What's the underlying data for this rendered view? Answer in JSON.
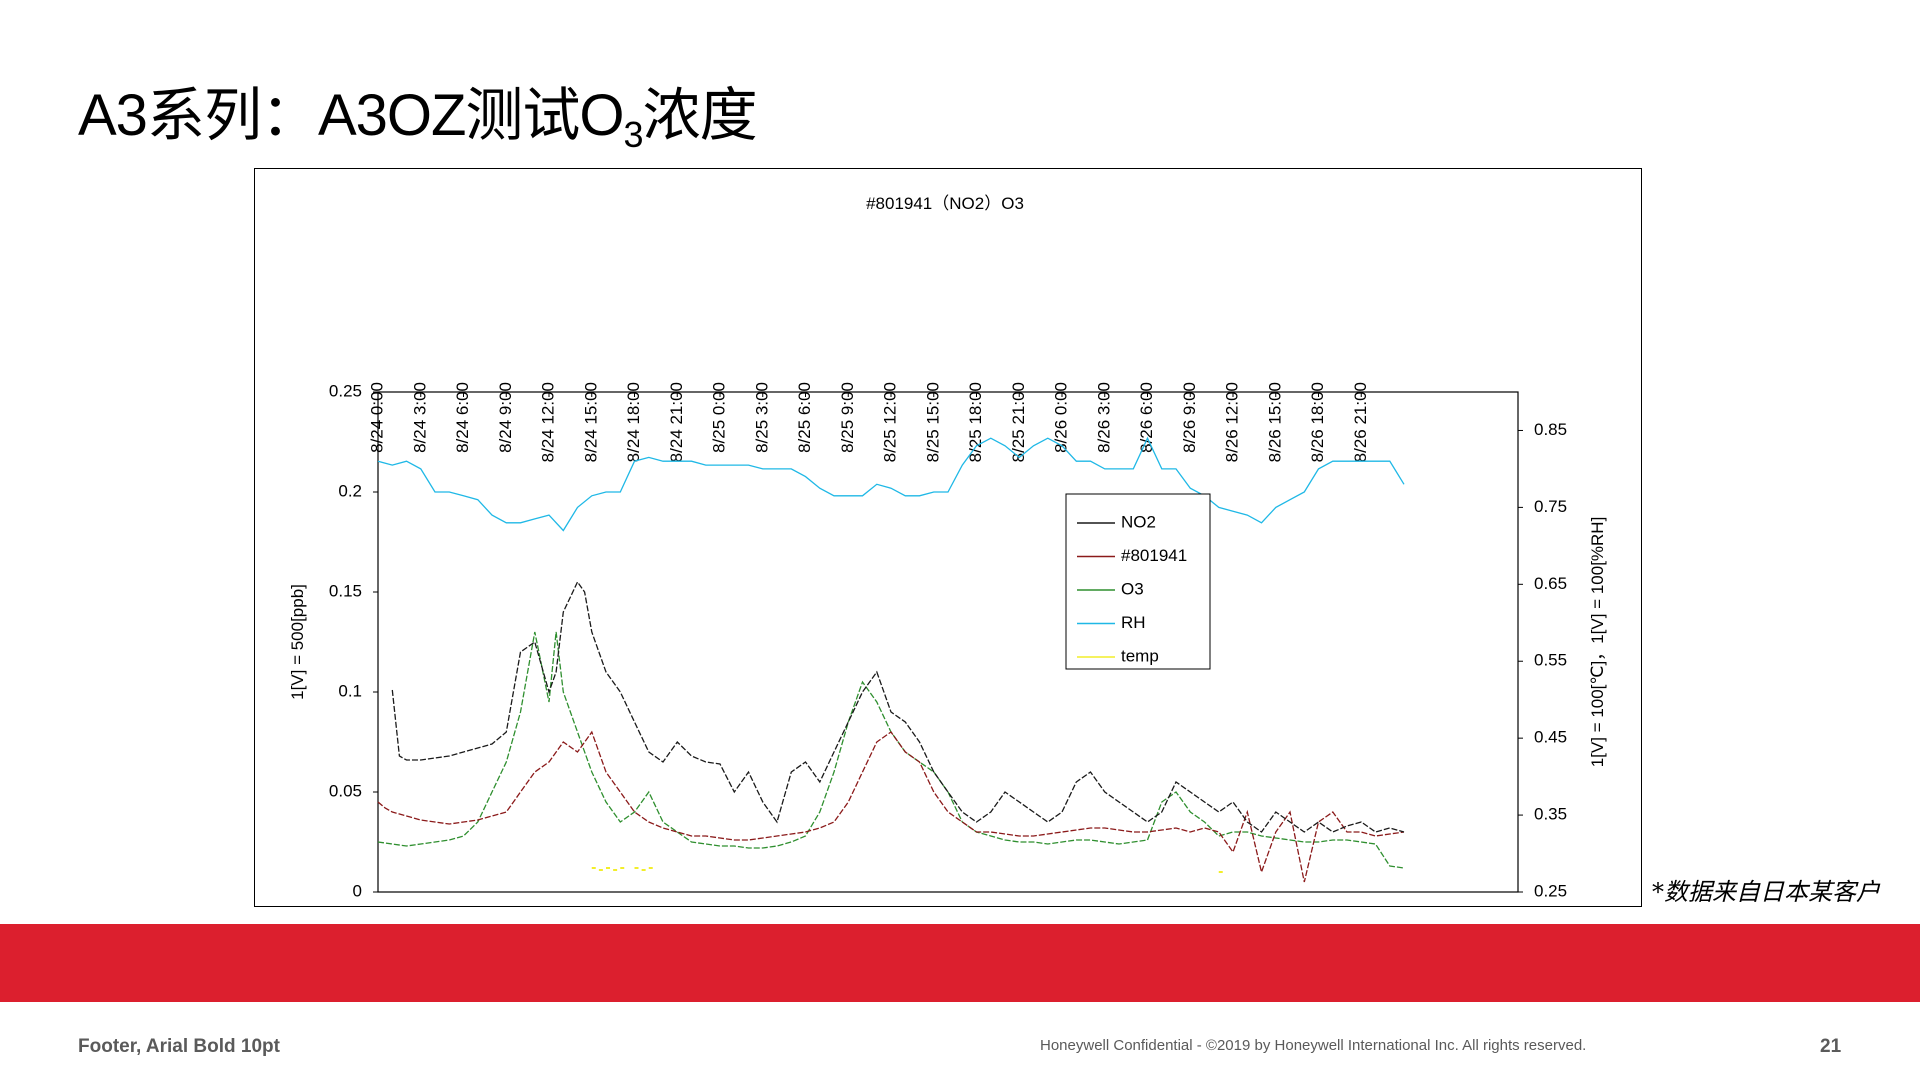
{
  "slide": {
    "title_main": "A3系列：A3OZ测试O",
    "title_sub": "3",
    "title_end": "浓度",
    "note": "*数据来自日本某客户",
    "footer_left": "Footer, Arial Bold 10pt",
    "footer_center": "Honeywell Confidential - ©2019 by Honeywell International Inc. All rights reserved.",
    "page_number": "21"
  },
  "colors": {
    "NO2": "#1a1a1a",
    "#801941": "#8b1a1a",
    "O3": "#2f8f2f",
    "RH": "#1fb8e6",
    "temp": "#f2ee2a",
    "band": "#dc1f2e"
  },
  "chart_data": {
    "type": "line",
    "title": "#801941（NO2）O3",
    "x_ticks": [
      "8/24 0:00",
      "8/24 3:00",
      "8/24 6:00",
      "8/24 9:00",
      "8/24 12:00",
      "8/24 15:00",
      "8/24 18:00",
      "8/24 21:00",
      "8/25 0:00",
      "8/25 3:00",
      "8/25 6:00",
      "8/25 9:00",
      "8/25 12:00",
      "8/25 15:00",
      "8/25 18:00",
      "8/25 21:00",
      "8/26 0:00",
      "8/26 3:00",
      "8/26 6:00",
      "8/26 9:00",
      "8/26 12:00",
      "8/26 15:00",
      "8/26 18:00",
      "8/26 21:00"
    ],
    "xlim_hours": [
      0,
      72
    ],
    "y_left": {
      "label": "1[V] = 500[ppb]",
      "ylim": [
        0,
        0.25
      ],
      "ticks": [
        "0",
        "0.05",
        "0.1",
        "0.15",
        "0.2",
        "0.25"
      ]
    },
    "y_right": {
      "label": "1[V] = 100[℃]，1[V] = 100[%RH]",
      "ylim": [
        0.25,
        0.9
      ],
      "ticks": [
        "0.25",
        "0.35",
        "0.45",
        "0.55",
        "0.65",
        "0.75",
        "0.85"
      ]
    },
    "legend": {
      "placement": "center-right",
      "entries": [
        "NO2",
        "#801941",
        "O3",
        "RH",
        "temp"
      ]
    },
    "series": [
      {
        "name": "NO2",
        "axis": "left",
        "x": [
          1,
          1.5,
          2,
          3,
          4,
          5,
          6,
          7,
          8,
          9,
          10,
          11,
          12,
          12.5,
          13,
          14,
          14.5,
          15,
          16,
          17,
          18,
          19,
          20,
          21,
          22,
          23,
          24,
          25,
          26,
          27,
          28,
          29,
          30,
          31,
          32,
          33,
          34,
          35,
          36,
          37,
          38,
          39,
          40,
          41,
          42,
          43,
          44,
          45,
          46,
          47,
          48,
          49,
          50,
          51,
          52,
          53,
          54,
          55,
          56,
          57,
          58,
          59,
          60,
          61,
          62,
          63,
          64,
          65,
          66,
          67,
          68,
          69,
          70,
          71,
          72
        ],
        "y": [
          0.101,
          0.068,
          0.066,
          0.066,
          0.067,
          0.068,
          0.07,
          0.072,
          0.074,
          0.08,
          0.12,
          0.125,
          0.1,
          0.11,
          0.14,
          0.155,
          0.15,
          0.13,
          0.11,
          0.1,
          0.085,
          0.07,
          0.065,
          0.075,
          0.068,
          0.065,
          0.064,
          0.05,
          0.06,
          0.045,
          0.035,
          0.06,
          0.065,
          0.055,
          0.07,
          0.085,
          0.1,
          0.11,
          0.09,
          0.085,
          0.075,
          0.06,
          0.05,
          0.04,
          0.035,
          0.04,
          0.05,
          0.045,
          0.04,
          0.035,
          0.04,
          0.055,
          0.06,
          0.05,
          0.045,
          0.04,
          0.035,
          0.04,
          0.055,
          0.05,
          0.045,
          0.04,
          0.045,
          0.035,
          0.03,
          0.04,
          0.035,
          0.03,
          0.035,
          0.03,
          0.033,
          0.035,
          0.03,
          0.032,
          0.03
        ]
      },
      {
        "name": "#801941",
        "axis": "left",
        "x": [
          0,
          0.5,
          1,
          2,
          3,
          4,
          5,
          6,
          7,
          8,
          9,
          10,
          11,
          12,
          13,
          14,
          15,
          16,
          17,
          18,
          19,
          20,
          21,
          22,
          23,
          24,
          25,
          26,
          27,
          28,
          29,
          30,
          31,
          32,
          33,
          34,
          35,
          36,
          37,
          38,
          39,
          40,
          41,
          42,
          43,
          44,
          45,
          46,
          47,
          48,
          49,
          50,
          51,
          52,
          53,
          54,
          55,
          56,
          57,
          58,
          59,
          60,
          61,
          62,
          63,
          64,
          65,
          66,
          67,
          68,
          69,
          70,
          71,
          72
        ],
        "y": [
          0.045,
          0.042,
          0.04,
          0.038,
          0.036,
          0.035,
          0.034,
          0.035,
          0.036,
          0.038,
          0.04,
          0.05,
          0.06,
          0.065,
          0.075,
          0.07,
          0.08,
          0.06,
          0.05,
          0.04,
          0.035,
          0.032,
          0.03,
          0.028,
          0.028,
          0.027,
          0.026,
          0.026,
          0.027,
          0.028,
          0.029,
          0.03,
          0.032,
          0.035,
          0.045,
          0.06,
          0.075,
          0.08,
          0.07,
          0.065,
          0.05,
          0.04,
          0.035,
          0.03,
          0.03,
          0.029,
          0.028,
          0.028,
          0.029,
          0.03,
          0.031,
          0.032,
          0.032,
          0.031,
          0.03,
          0.03,
          0.031,
          0.032,
          0.03,
          0.032,
          0.03,
          0.02,
          0.04,
          0.01,
          0.03,
          0.04,
          0.005,
          0.035,
          0.04,
          0.03,
          0.03,
          0.028,
          0.029,
          0.03
        ]
      },
      {
        "name": "O3",
        "axis": "left",
        "x": [
          0,
          1,
          2,
          3,
          4,
          5,
          6,
          7,
          8,
          9,
          10,
          11,
          12,
          12.5,
          13,
          13.5,
          14,
          15,
          16,
          17,
          18,
          19,
          20,
          21,
          22,
          23,
          24,
          25,
          26,
          27,
          28,
          29,
          30,
          31,
          32,
          33,
          34,
          35,
          36,
          37,
          38,
          39,
          40,
          41,
          42,
          43,
          44,
          45,
          46,
          47,
          48,
          49,
          50,
          51,
          52,
          53,
          54,
          55,
          56,
          57,
          58,
          59,
          60,
          61,
          62,
          63,
          64,
          65,
          66,
          67,
          68,
          69,
          70,
          71,
          72
        ],
        "y": [
          0.025,
          0.024,
          0.023,
          0.024,
          0.025,
          0.026,
          0.028,
          0.035,
          0.05,
          0.065,
          0.09,
          0.13,
          0.095,
          0.13,
          0.1,
          0.09,
          0.08,
          0.06,
          0.045,
          0.035,
          0.04,
          0.05,
          0.035,
          0.03,
          0.025,
          0.024,
          0.023,
          0.023,
          0.022,
          0.022,
          0.023,
          0.025,
          0.028,
          0.04,
          0.06,
          0.085,
          0.105,
          0.095,
          0.08,
          0.07,
          0.065,
          0.06,
          0.05,
          0.035,
          0.03,
          0.028,
          0.026,
          0.025,
          0.025,
          0.024,
          0.025,
          0.026,
          0.026,
          0.025,
          0.024,
          0.025,
          0.026,
          0.045,
          0.05,
          0.04,
          0.035,
          0.028,
          0.03,
          0.03,
          0.028,
          0.027,
          0.026,
          0.025,
          0.025,
          0.026,
          0.026,
          0.025,
          0.024,
          0.013,
          0.012
        ]
      },
      {
        "name": "RH",
        "axis": "right",
        "x": [
          0,
          1,
          2,
          3,
          4,
          5,
          6,
          7,
          8,
          9,
          10,
          11,
          12,
          13,
          14,
          15,
          16,
          17,
          18,
          19,
          20,
          21,
          22,
          23,
          24,
          25,
          26,
          27,
          28,
          29,
          30,
          31,
          32,
          33,
          34,
          35,
          36,
          37,
          38,
          39,
          40,
          41,
          42,
          43,
          44,
          45,
          46,
          47,
          48,
          49,
          50,
          51,
          52,
          53,
          54,
          55,
          56,
          57,
          58,
          59,
          60,
          61,
          62,
          63,
          64,
          65,
          66,
          67,
          68,
          69,
          70,
          71,
          72
        ],
        "y": [
          0.81,
          0.805,
          0.81,
          0.8,
          0.77,
          0.77,
          0.765,
          0.76,
          0.74,
          0.73,
          0.73,
          0.735,
          0.74,
          0.72,
          0.75,
          0.765,
          0.77,
          0.77,
          0.81,
          0.815,
          0.81,
          0.81,
          0.81,
          0.805,
          0.805,
          0.805,
          0.805,
          0.8,
          0.8,
          0.8,
          0.79,
          0.775,
          0.765,
          0.765,
          0.765,
          0.78,
          0.775,
          0.765,
          0.765,
          0.77,
          0.77,
          0.805,
          0.83,
          0.84,
          0.83,
          0.815,
          0.83,
          0.84,
          0.83,
          0.81,
          0.81,
          0.8,
          0.8,
          0.8,
          0.84,
          0.8,
          0.8,
          0.775,
          0.765,
          0.75,
          0.745,
          0.74,
          0.73,
          0.75,
          0.76,
          0.77,
          0.8,
          0.81,
          0.81,
          0.81,
          0.81,
          0.81,
          0.78
        ]
      },
      {
        "name": "temp",
        "axis": "left",
        "x": [
          15,
          15.5,
          16,
          16.5,
          17,
          18,
          18.5,
          19,
          59
        ],
        "y": [
          0.012,
          0.011,
          0.012,
          0.011,
          0.012,
          0.012,
          0.011,
          0.012,
          0.01
        ]
      }
    ]
  }
}
